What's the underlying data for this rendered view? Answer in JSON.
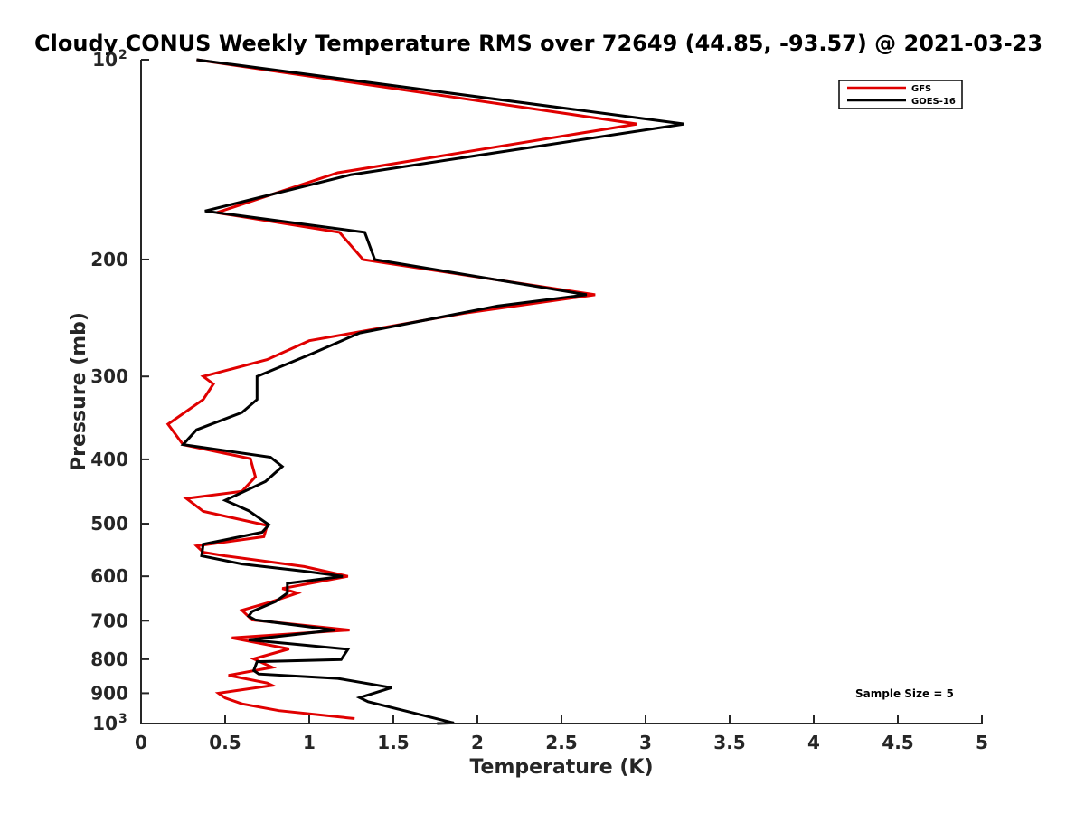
{
  "chart_data": {
    "type": "line",
    "title": "Cloudy CONUS Weekly Temperature RMS over 72649 (44.85, -93.57) @ 2021-03-23",
    "xlabel": "Temperature (K)",
    "ylabel": "Pressure (mb)",
    "xlim": [
      0,
      5
    ],
    "ylim": [
      100,
      1000
    ],
    "y_scale": "log",
    "y_reversed": true,
    "grid": false,
    "legend_position": "top-right",
    "x_ticks": [
      "0",
      "0.5",
      "1",
      "1.5",
      "2",
      "2.5",
      "3",
      "3.5",
      "4",
      "4.5",
      "5"
    ],
    "y_ticks": [
      {
        "value": 100,
        "base": "10",
        "exp": "2"
      },
      {
        "value": 200,
        "label": "200"
      },
      {
        "value": 300,
        "label": "300"
      },
      {
        "value": 400,
        "label": "400"
      },
      {
        "value": 500,
        "label": "500"
      },
      {
        "value": 600,
        "label": "600"
      },
      {
        "value": 700,
        "label": "700"
      },
      {
        "value": 800,
        "label": "800"
      },
      {
        "value": 900,
        "label": "900"
      },
      {
        "value": 1000,
        "base": "10",
        "exp": "3"
      }
    ],
    "annotation": "Sample Size = 5",
    "series": [
      {
        "name": "GFS",
        "color": "#e00000",
        "x": [
          0.33,
          2.95,
          1.17,
          0.45,
          1.18,
          1.32,
          2.7,
          1.92,
          1.0,
          0.75,
          0.37,
          0.43,
          0.37,
          0.16,
          0.25,
          0.65,
          0.68,
          0.6,
          0.27,
          0.37,
          0.75,
          0.73,
          0.33,
          0.37,
          0.5,
          0.97,
          1.23,
          0.84,
          0.93,
          0.78,
          0.6,
          0.66,
          1.24,
          0.54,
          0.88,
          0.67,
          0.78,
          0.52,
          0.75,
          0.78,
          0.46,
          0.5,
          0.6,
          0.82,
          1.27
        ],
        "y": [
          100,
          125,
          148,
          170,
          182,
          200,
          226,
          241,
          265,
          283,
          300,
          308,
          325,
          354,
          380,
          399,
          425,
          447,
          458,
          479,
          503,
          523,
          540,
          552,
          559,
          580,
          600,
          626,
          636,
          655,
          675,
          698,
          723,
          743,
          772,
          799,
          823,
          846,
          869,
          876,
          900,
          915,
          934,
          956,
          983
        ]
      },
      {
        "name": "GOES-16",
        "color": "#000000",
        "x": [
          0.33,
          3.23,
          1.25,
          0.38,
          1.33,
          1.39,
          2.65,
          2.12,
          1.3,
          1.02,
          0.69,
          0.69,
          0.6,
          0.33,
          0.25,
          0.77,
          0.84,
          0.74,
          0.5,
          0.64,
          0.76,
          0.72,
          0.37,
          0.36,
          0.6,
          0.98,
          1.2,
          0.87,
          0.87,
          0.8,
          0.66,
          0.64,
          0.68,
          1.15,
          0.64,
          1.23,
          1.19,
          0.69,
          0.67,
          0.7,
          1.17,
          1.49,
          1.3,
          1.35,
          1.6,
          1.86,
          1.76
        ],
        "y": [
          100,
          125,
          149,
          169,
          182,
          200,
          226,
          235,
          258,
          277,
          300,
          325,
          340,
          361,
          380,
          397,
          410,
          432,
          461,
          478,
          502,
          515,
          537,
          559,
          575,
          590,
          600,
          615,
          636,
          655,
          678,
          689,
          698,
          723,
          748,
          773,
          801,
          807,
          832,
          842,
          855,
          883,
          914,
          927,
          961,
          998,
          1000
        ]
      }
    ]
  }
}
